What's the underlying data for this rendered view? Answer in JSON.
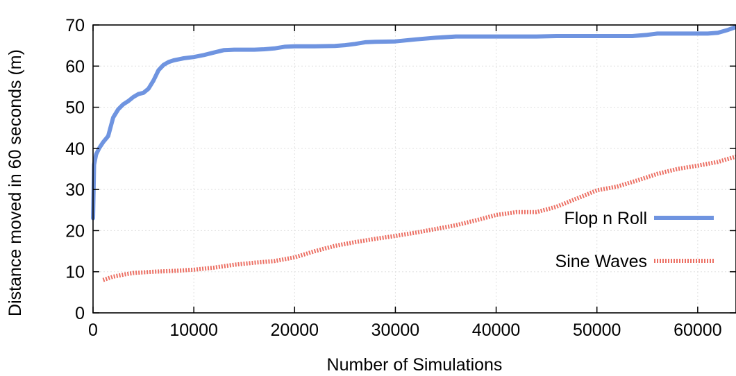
{
  "chart_data": {
    "type": "line",
    "xlabel": "Number of Simulations",
    "ylabel": "Distance moved in 60 seconds (m)",
    "xlim": [
      0,
      63800
    ],
    "ylim": [
      0,
      70
    ],
    "x_ticks": [
      "0",
      "10000",
      "20000",
      "30000",
      "40000",
      "50000",
      "60000"
    ],
    "y_ticks": [
      "0",
      "10",
      "20",
      "30",
      "40",
      "50",
      "60",
      "70"
    ],
    "grid": true,
    "legend_position": "bottom-right",
    "series": [
      {
        "name": "Flop n Roll",
        "color": "#6f94e0",
        "style": "solid",
        "x": [
          0,
          100,
          300,
          600,
          1000,
          1500,
          2000,
          2500,
          3000,
          3500,
          4000,
          4500,
          5000,
          5500,
          6000,
          6500,
          7000,
          7500,
          8000,
          9000,
          10000,
          11000,
          12000,
          13000,
          14000,
          15000,
          16000,
          17000,
          18000,
          19000,
          20000,
          22000,
          24000,
          25000,
          26000,
          27000,
          28000,
          30000,
          32000,
          34000,
          36000,
          38000,
          40000,
          42000,
          44000,
          46000,
          48000,
          50000,
          52000,
          53500,
          55000,
          56000,
          58000,
          60000,
          61000,
          62000,
          63000,
          63800
        ],
        "y": [
          23,
          36,
          38.5,
          40,
          41.5,
          43,
          47.5,
          49.5,
          50.7,
          51.5,
          52.5,
          53.2,
          53.5,
          54.5,
          56.5,
          59,
          60.3,
          61,
          61.4,
          61.9,
          62.2,
          62.7,
          63.3,
          63.9,
          64,
          64,
          64,
          64.1,
          64.3,
          64.7,
          64.8,
          64.8,
          64.9,
          65.1,
          65.4,
          65.8,
          65.9,
          66,
          66.5,
          66.9,
          67.2,
          67.2,
          67.2,
          67.2,
          67.2,
          67.3,
          67.3,
          67.3,
          67.3,
          67.3,
          67.6,
          67.9,
          67.9,
          67.9,
          67.9,
          68.1,
          68.8,
          69.5
        ]
      },
      {
        "name": "Sine Waves",
        "color": "#ec7064",
        "style": "dotted",
        "x": [
          1000,
          2000,
          3000,
          4000,
          6000,
          8000,
          10000,
          12000,
          14000,
          16000,
          18000,
          20000,
          22000,
          24000,
          26000,
          28000,
          30000,
          32000,
          34000,
          36000,
          38000,
          40000,
          42000,
          44000,
          46000,
          48000,
          50000,
          52000,
          54000,
          56000,
          58000,
          60000,
          62000,
          63800
        ],
        "y": [
          8,
          8.8,
          9.3,
          9.7,
          10,
          10.2,
          10.5,
          11,
          11.7,
          12.2,
          12.6,
          13.5,
          15,
          16.3,
          17.2,
          18,
          18.7,
          19.5,
          20.4,
          21.3,
          22.5,
          23.8,
          24.5,
          24.5,
          25.8,
          27.8,
          29.8,
          30.7,
          32.2,
          33.8,
          35,
          35.8,
          36.7,
          38
        ]
      }
    ]
  }
}
